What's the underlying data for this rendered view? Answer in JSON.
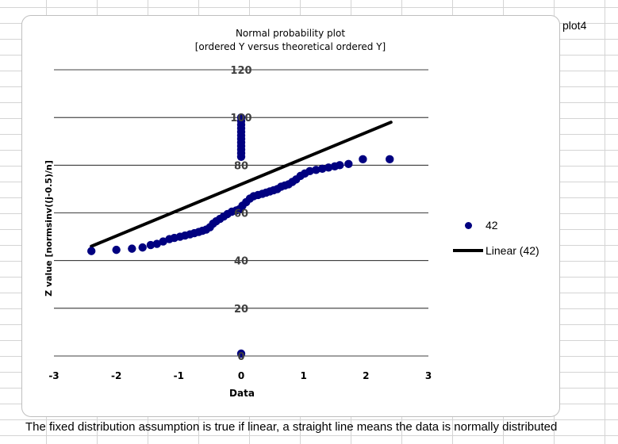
{
  "sheet_label": "plot4",
  "caption": "The fixed distribution assumption is true if linear, a straight line means the data is normally distributed",
  "colors": {
    "series": "#000080",
    "trendline": "#000000",
    "gridline": "#000000"
  },
  "chart_data": {
    "type": "scatter",
    "title": "Normal probability plot",
    "subtitle": "[ordered Y versus theoretical ordered Y]",
    "xlabel": "Data",
    "ylabel": "Z value [normsinv((j-0.5)/n]",
    "xlim": [
      -3,
      3
    ],
    "ylim": [
      0,
      120
    ],
    "x_ticks": [
      "-3",
      "-2",
      "-1",
      "0",
      "1",
      "2",
      "3"
    ],
    "y_ticks": [
      "0",
      "20",
      "40",
      "60",
      "80",
      "100",
      "120"
    ],
    "grid": "horizontal",
    "legend_position": "right",
    "series": [
      {
        "name": "42",
        "marker": "circle",
        "points": [
          [
            -2.4,
            44
          ],
          [
            -2.0,
            44.5
          ],
          [
            -1.75,
            45
          ],
          [
            -1.58,
            45.5
          ],
          [
            -1.45,
            46.5
          ],
          [
            -1.35,
            47
          ],
          [
            -1.25,
            48
          ],
          [
            -1.15,
            49
          ],
          [
            -1.07,
            49.5
          ],
          [
            -0.98,
            50
          ],
          [
            -0.9,
            50.5
          ],
          [
            -0.82,
            51
          ],
          [
            -0.75,
            51.5
          ],
          [
            -0.68,
            52
          ],
          [
            -0.62,
            52.5
          ],
          [
            -0.56,
            53
          ],
          [
            -0.5,
            54
          ],
          [
            -0.45,
            55.5
          ],
          [
            -0.4,
            56.5
          ],
          [
            -0.34,
            57.5
          ],
          [
            -0.28,
            58.5
          ],
          [
            -0.22,
            59.5
          ],
          [
            -0.15,
            60.5
          ],
          [
            -0.08,
            61
          ],
          [
            -0.03,
            61.5
          ],
          [
            0.02,
            63
          ],
          [
            0.08,
            64.5
          ],
          [
            0.14,
            66
          ],
          [
            0.2,
            67
          ],
          [
            0.27,
            67.5
          ],
          [
            0.34,
            68
          ],
          [
            0.4,
            68.5
          ],
          [
            0.46,
            69
          ],
          [
            0.52,
            69.5
          ],
          [
            0.58,
            70
          ],
          [
            0.64,
            71
          ],
          [
            0.7,
            71.5
          ],
          [
            0.76,
            72
          ],
          [
            0.82,
            73
          ],
          [
            0.88,
            74
          ],
          [
            0.95,
            75.5
          ],
          [
            1.02,
            76.5
          ],
          [
            1.1,
            77.5
          ],
          [
            1.2,
            78
          ],
          [
            1.3,
            78.5
          ],
          [
            1.4,
            79
          ],
          [
            1.5,
            79.5
          ],
          [
            1.58,
            80
          ],
          [
            1.72,
            80.5
          ],
          [
            1.95,
            82.5
          ],
          [
            2.38,
            82.5
          ],
          [
            0,
            1
          ],
          [
            0,
            83.5
          ],
          [
            0,
            85
          ],
          [
            0,
            86.5
          ],
          [
            0,
            88
          ],
          [
            0,
            89.5
          ],
          [
            0,
            91
          ],
          [
            0,
            92.5
          ],
          [
            0,
            94
          ],
          [
            0,
            95.5
          ],
          [
            0,
            97
          ],
          [
            0,
            98.5
          ],
          [
            0,
            100
          ]
        ]
      },
      {
        "name": "Linear (42)",
        "type": "trendline",
        "points": [
          [
            -2.4,
            46
          ],
          [
            2.4,
            98
          ]
        ]
      }
    ]
  }
}
